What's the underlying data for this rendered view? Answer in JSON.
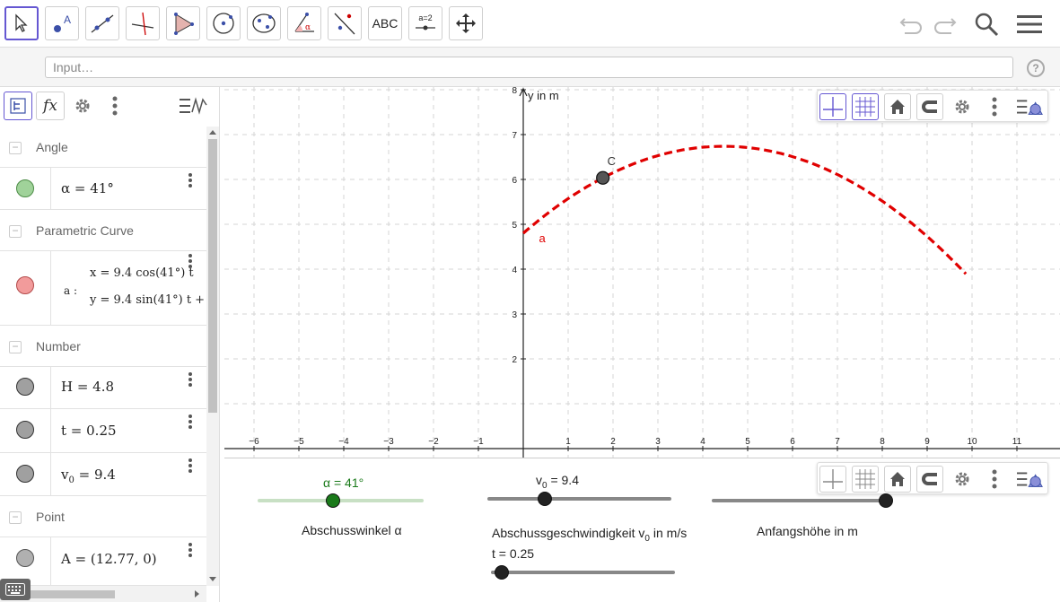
{
  "toolbar": {
    "tools": [
      {
        "name": "move-tool",
        "label": ""
      },
      {
        "name": "point-tool",
        "label": "A"
      },
      {
        "name": "line-tool",
        "label": ""
      },
      {
        "name": "perpendicular-tool",
        "label": ""
      },
      {
        "name": "polygon-tool",
        "label": ""
      },
      {
        "name": "circle-tool",
        "label": ""
      },
      {
        "name": "ellipse-tool",
        "label": ""
      },
      {
        "name": "angle-tool",
        "label": "α"
      },
      {
        "name": "reflect-tool",
        "label": ""
      },
      {
        "name": "text-tool",
        "label": "ABC"
      },
      {
        "name": "slider-tool",
        "label": "a=2"
      },
      {
        "name": "move-view-tool",
        "label": ""
      }
    ]
  },
  "input": {
    "placeholder": "Input…",
    "value": ""
  },
  "algebra": {
    "groups": {
      "angle": "Angle",
      "parametric": "Parametric Curve",
      "number": "Number",
      "point": "Point"
    },
    "items": {
      "alpha": "α = 41°",
      "curve_name": "a :",
      "curve_x": "x = 9.4  cos(41°) t",
      "curve_y": "y = 9.4  sin(41°) t +",
      "H": "H = 4.8",
      "t": "t = 0.25",
      "v0_base": "v",
      "v0_sub": "0",
      "v0_rest": " = 9.4",
      "A": "A = (12.77, 0)"
    },
    "colors": {
      "alpha": "#a0d29a",
      "curve": "#f08c8c",
      "number": "#a0a0a0",
      "point": "#b0b0b0"
    }
  },
  "graphics": {
    "y_axis_label": "y in m",
    "x_ticks": [
      "−6",
      "−5",
      "−4",
      "−3",
      "−2",
      "−1",
      "1",
      "2",
      "3",
      "4",
      "5",
      "6",
      "7",
      "8",
      "9",
      "10",
      "11"
    ],
    "y_ticks": [
      "2",
      "3",
      "4",
      "5",
      "6",
      "7",
      "8"
    ],
    "point_label": "C",
    "curve_label": "a",
    "curve_color": "#e00000"
  },
  "sliders": {
    "alpha_label": "α = 41°",
    "alpha_caption": "Abschusswinkel α",
    "v0_label_base": "v",
    "v0_label_sub": "0",
    "v0_label_rest": " = 9.4",
    "v0_caption_base": "Abschussgeschwindigkeit v",
    "v0_caption_sub": "0",
    "v0_caption_rest": " in m/s",
    "t_label": "t = 0.25",
    "H_caption": "Anfangshöhe in m",
    "alpha_color": "#1a7a1a"
  }
}
